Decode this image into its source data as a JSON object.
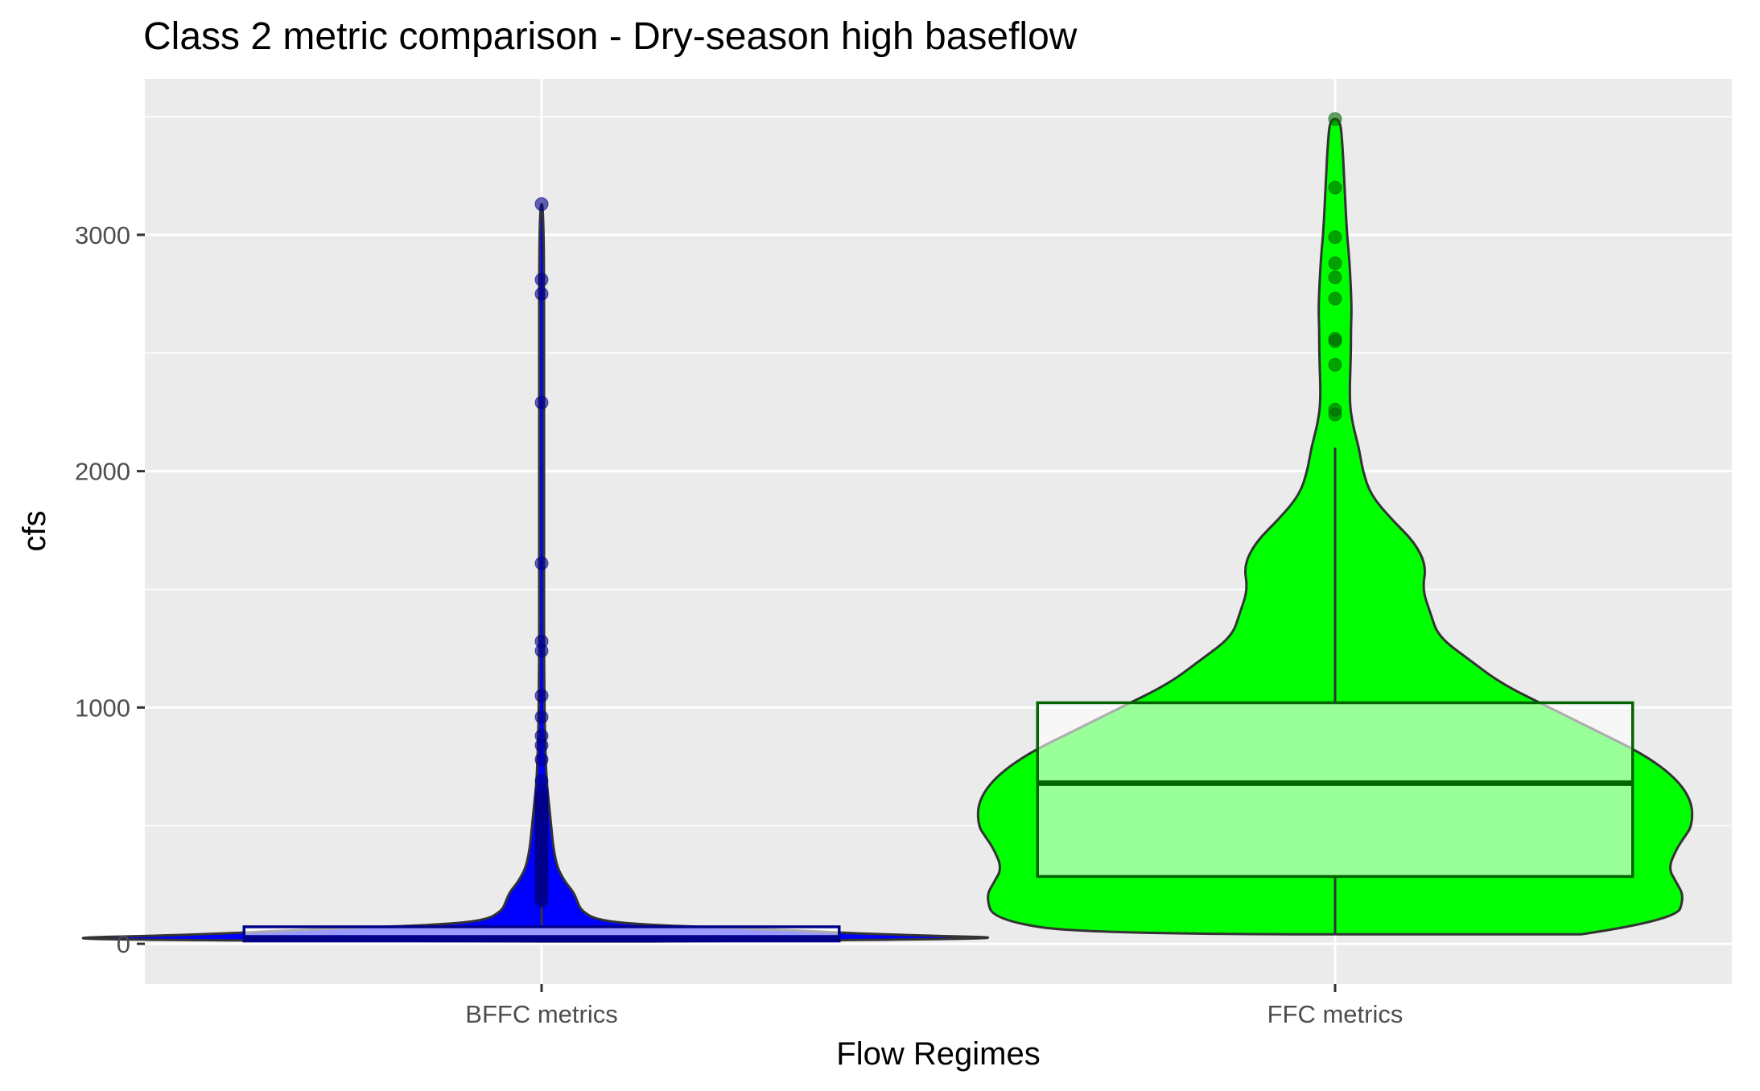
{
  "chart_data": {
    "type": "violin",
    "title": "Class 2 metric comparison - Dry-season high baseflow",
    "xlabel": "Flow Regimes",
    "ylabel": "cfs",
    "categories": [
      "BFFC metrics",
      "FFC metrics"
    ],
    "ylim": [
      -170,
      3660
    ],
    "yticks": [
      0,
      1000,
      2000,
      3000
    ],
    "grid": true,
    "legend": "none",
    "series": [
      {
        "colors": {
          "fill": "#0000ff",
          "box_fill": "#ffffff",
          "box_line": "#00008b",
          "points": "#00008b"
        },
        "violin": {
          "y": [
            10,
            20,
            40,
            60,
            80,
            100,
            140,
            180,
            220,
            260,
            320,
            400,
            500,
            600,
            700,
            900,
            1200,
            1600,
            2300,
            3130
          ],
          "halfwidth": [
            0.14,
            0.66,
            0.42,
            0.3,
            0.13,
            0.07,
            0.05,
            0.045,
            0.04,
            0.03,
            0.02,
            0.015,
            0.012,
            0.009,
            0.006,
            0.004,
            0.003,
            0.003,
            0.003,
            0.003
          ]
        },
        "box": {
          "lower": 8,
          "q1": 12,
          "median": 25,
          "q3": 72,
          "upper": 170
        },
        "outliers": [
          180,
          190,
          200,
          210,
          220,
          230,
          240,
          250,
          260,
          270,
          280,
          290,
          300,
          310,
          320,
          330,
          340,
          350,
          360,
          370,
          380,
          390,
          400,
          410,
          420,
          430,
          440,
          450,
          460,
          470,
          480,
          490,
          500,
          510,
          520,
          530,
          540,
          550,
          560,
          570,
          580,
          590,
          600,
          610,
          620,
          630,
          650,
          690,
          780,
          840,
          880,
          960,
          1050,
          1240,
          1280,
          1610,
          2290,
          2750,
          2810,
          3130
        ]
      },
      {
        "colors": {
          "fill": "#00ff00",
          "box_fill": "#ffffff",
          "box_line": "#006400",
          "points": "#006400"
        },
        "violin": {
          "y": [
            40,
            100,
            200,
            260,
            320,
            400,
            450,
            500,
            600,
            700,
            800,
            900,
            1000,
            1100,
            1200,
            1300,
            1400,
            1500,
            1600,
            1700,
            1800,
            1900,
            2000,
            2100,
            2200,
            2300,
            2500,
            2600,
            2700,
            2900,
            3000,
            3200,
            3400,
            3490
          ],
          "halfwidth": [
            0.31,
            0.43,
            0.44,
            0.43,
            0.42,
            0.43,
            0.44,
            0.45,
            0.45,
            0.43,
            0.39,
            0.33,
            0.27,
            0.21,
            0.17,
            0.13,
            0.12,
            0.11,
            0.115,
            0.1,
            0.07,
            0.045,
            0.035,
            0.03,
            0.022,
            0.018,
            0.02,
            0.02,
            0.021,
            0.018,
            0.015,
            0.012,
            0.009,
            0.006
          ]
        },
        "box": {
          "lower": 40,
          "q1": 285,
          "median": 680,
          "q3": 1020,
          "upper": 2100
        },
        "outliers": [
          2240,
          2260,
          2450,
          2550,
          2560,
          2730,
          2820,
          2880,
          2990,
          3200,
          3490
        ]
      }
    ]
  }
}
